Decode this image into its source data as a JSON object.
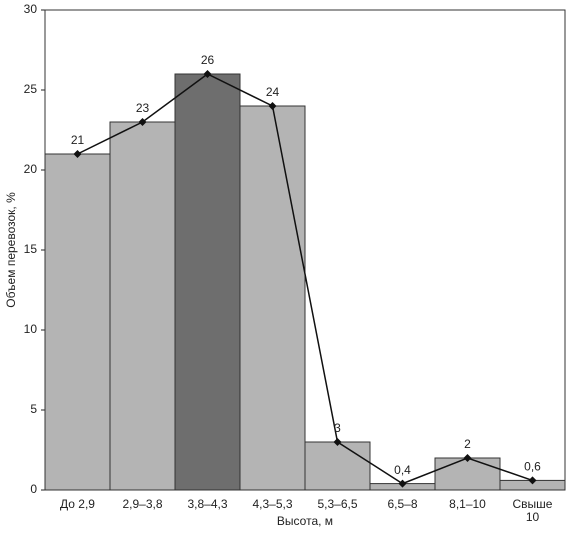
{
  "chart_data": {
    "type": "bar_line",
    "x_label": "Высота, м",
    "y_label": "Объем перевозок, %",
    "categories": [
      "До 2,9",
      "2,9–3,8",
      "3,8–4,3",
      "4,3–5,3",
      "5,3–6,5",
      "6,5–8",
      "8,1–10",
      "Свыше 10"
    ],
    "values": [
      21,
      23,
      26,
      24,
      3,
      0.4,
      2,
      0.6
    ],
    "value_labels": [
      "21",
      "23",
      "26",
      "24",
      "3",
      "0,4",
      "2",
      "0,6"
    ],
    "colors": [
      "#b4b4b4",
      "#b4b4b4",
      "#6e6e6e",
      "#b4b4b4",
      "#b4b4b4",
      "#b4b4b4",
      "#b4b4b4",
      "#b4b4b4"
    ],
    "line_color": "#111111",
    "ylim": [
      0,
      30
    ],
    "yticks": [
      0,
      5,
      10,
      15,
      20,
      25,
      30
    ]
  }
}
